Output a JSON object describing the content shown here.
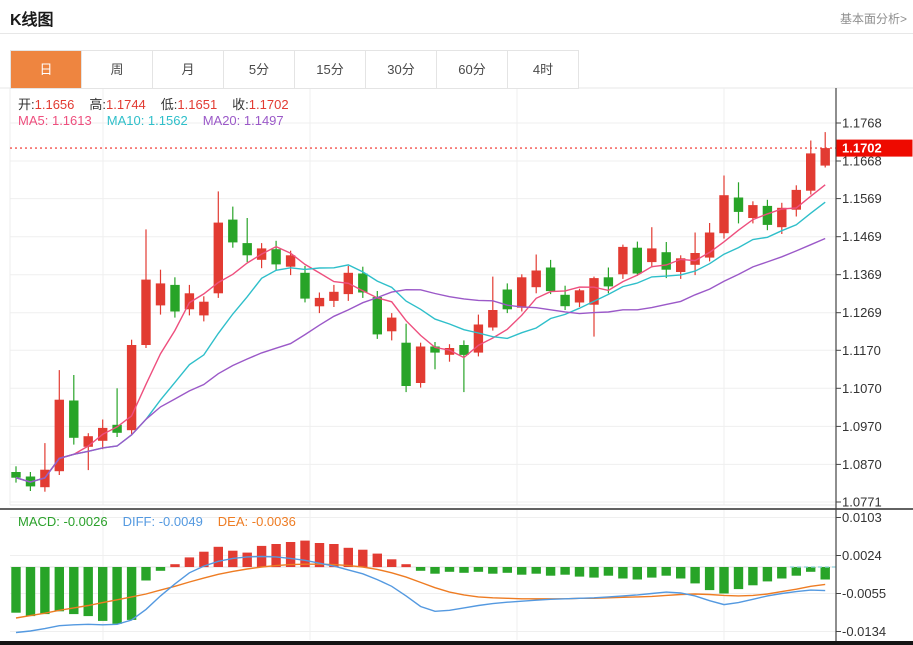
{
  "header": {
    "title": "K线图",
    "analysis_link": "基本面分析>"
  },
  "tabs": [
    {
      "name": "day",
      "label": "日",
      "active": true
    },
    {
      "name": "week",
      "label": "周",
      "active": false
    },
    {
      "name": "month",
      "label": "月",
      "active": false
    },
    {
      "name": "5min",
      "label": "5分",
      "active": false
    },
    {
      "name": "15min",
      "label": "15分",
      "active": false
    },
    {
      "name": "30min",
      "label": "30分",
      "active": false
    },
    {
      "name": "60min",
      "label": "60分",
      "active": false
    },
    {
      "name": "4hour",
      "label": "4时",
      "active": false
    }
  ],
  "ohlc_legend": {
    "label_color": "#333333",
    "value_color": "#e23b32",
    "items": [
      {
        "label": "开:",
        "value": "1.1656"
      },
      {
        "label": "高:",
        "value": "1.1744"
      },
      {
        "label": "低:",
        "value": "1.1651"
      },
      {
        "label": "收:",
        "value": "1.1702"
      }
    ]
  },
  "ma_legend": [
    {
      "label": "MA5: ",
      "value": "1.1613",
      "color": "#ee4f7e"
    },
    {
      "label": "MA10: ",
      "value": "1.1562",
      "color": "#2fbfca"
    },
    {
      "label": "MA20: ",
      "value": "1.1497",
      "color": "#9b59c8"
    }
  ],
  "macd_legend": [
    {
      "label": "MACD: ",
      "value": "-0.0026",
      "color": "#2ba12b"
    },
    {
      "label": "DIFF: ",
      "value": "-0.0049",
      "color": "#5499e0"
    },
    {
      "label": "DEA: ",
      "value": "-0.0036",
      "color": "#ee7c23"
    }
  ],
  "price_tag": {
    "value": "1.1702"
  },
  "y_axis": {
    "main_ticks": [
      "1.1768",
      "1.1668",
      "1.1569",
      "1.1469",
      "1.1369",
      "1.1269",
      "1.1170",
      "1.1070",
      "1.0970",
      "1.0870",
      "1.0771"
    ],
    "macd_ticks": [
      "0.0103",
      "0.0024",
      "-0.0055",
      "-0.0134"
    ]
  },
  "colors": {
    "up": "#e23b32",
    "down": "#28a428",
    "ma5": "#ee4f7e",
    "ma10": "#2fbfca",
    "ma20": "#9b59c8",
    "diff": "#5499e0",
    "dea": "#ee7c23",
    "tab_active_bg": "#ee8540",
    "price_line": "#f4514c",
    "price_tag_bg": "#ee0a00",
    "grid": "#efefef",
    "axis": "#444444",
    "text": "#333333",
    "zero_dash": "#8ed1dc"
  },
  "chart_data": [
    {
      "type": "candlestick",
      "interval": "日",
      "price_line": 1.1702,
      "ohlc": {
        "open": 1.1656,
        "high": 1.1744,
        "low": 1.1651,
        "close": 1.1702
      },
      "ma": {
        "MA5": 1.1613,
        "MA10": 1.1562,
        "MA20": 1.1497
      },
      "ma_periods": [
        5,
        10,
        20
      ],
      "y_range": [
        1.0771,
        1.1768
      ],
      "candles": [
        [
          1.085,
          1.0865,
          1.0822,
          1.0835
        ],
        [
          1.0838,
          1.085,
          1.08,
          1.0812
        ],
        [
          1.081,
          1.0926,
          1.0798,
          1.0856
        ],
        [
          1.0852,
          1.1118,
          1.0842,
          1.104
        ],
        [
          1.1038,
          1.1105,
          1.0922,
          1.094
        ],
        [
          1.0916,
          1.0952,
          1.0855,
          1.0944
        ],
        [
          1.0932,
          1.0988,
          1.091,
          1.0966
        ],
        [
          1.0974,
          1.107,
          1.0942,
          1.0953
        ],
        [
          1.096,
          1.1198,
          1.095,
          1.1184
        ],
        [
          1.1184,
          1.1488,
          1.1176,
          1.1356
        ],
        [
          1.1288,
          1.1382,
          1.1264,
          1.1346
        ],
        [
          1.1342,
          1.1362,
          1.1256,
          1.1272
        ],
        [
          1.1278,
          1.1342,
          1.1262,
          1.132
        ],
        [
          1.1262,
          1.1312,
          1.1246,
          1.1298
        ],
        [
          1.132,
          1.1588,
          1.1308,
          1.1506
        ],
        [
          1.1514,
          1.1548,
          1.144,
          1.1454
        ],
        [
          1.1452,
          1.1518,
          1.1402,
          1.142
        ],
        [
          1.1408,
          1.1452,
          1.1386,
          1.1438
        ],
        [
          1.1436,
          1.1458,
          1.138,
          1.1396
        ],
        [
          1.139,
          1.1432,
          1.1368,
          1.142
        ],
        [
          1.1374,
          1.1392,
          1.1296,
          1.1306
        ],
        [
          1.1286,
          1.1322,
          1.1268,
          1.1308
        ],
        [
          1.13,
          1.1342,
          1.1284,
          1.1324
        ],
        [
          1.1318,
          1.1392,
          1.13,
          1.1374
        ],
        [
          1.1372,
          1.139,
          1.1308,
          1.1322
        ],
        [
          1.131,
          1.1326,
          1.12,
          1.1212
        ],
        [
          1.122,
          1.1268,
          1.1196,
          1.1256
        ],
        [
          1.119,
          1.124,
          1.106,
          1.1076
        ],
        [
          1.1084,
          1.119,
          1.1072,
          1.118
        ],
        [
          1.118,
          1.1192,
          1.112,
          1.1164
        ],
        [
          1.1158,
          1.1186,
          1.114,
          1.1176
        ],
        [
          1.1184,
          1.1196,
          1.106,
          1.1158
        ],
        [
          1.1164,
          1.1264,
          1.1154,
          1.1238
        ],
        [
          1.123,
          1.1364,
          1.1222,
          1.1276
        ],
        [
          1.133,
          1.1346,
          1.1268,
          1.1278
        ],
        [
          1.1282,
          1.137,
          1.1272,
          1.1362
        ],
        [
          1.1336,
          1.1422,
          1.132,
          1.138
        ],
        [
          1.1388,
          1.1408,
          1.1318,
          1.1326
        ],
        [
          1.1316,
          1.134,
          1.1276,
          1.1286
        ],
        [
          1.1296,
          1.1332,
          1.1284,
          1.1328
        ],
        [
          1.129,
          1.1364,
          1.1206,
          1.136
        ],
        [
          1.1362,
          1.1388,
          1.132,
          1.1338
        ],
        [
          1.137,
          1.1448,
          1.1358,
          1.1442
        ],
        [
          1.144,
          1.1456,
          1.1366,
          1.1372
        ],
        [
          1.1402,
          1.1494,
          1.1388,
          1.1438
        ],
        [
          1.1428,
          1.1455,
          1.136,
          1.1382
        ],
        [
          1.1376,
          1.142,
          1.1358,
          1.1412
        ],
        [
          1.1395,
          1.148,
          1.1368,
          1.1426
        ],
        [
          1.1414,
          1.1505,
          1.1404,
          1.148
        ],
        [
          1.1478,
          1.163,
          1.1464,
          1.1578
        ],
        [
          1.1572,
          1.1612,
          1.1504,
          1.1534
        ],
        [
          1.1518,
          1.1562,
          1.1504,
          1.1552
        ],
        [
          1.155,
          1.1566,
          1.1486,
          1.15
        ],
        [
          1.1494,
          1.1558,
          1.1476,
          1.1545
        ],
        [
          1.154,
          1.1604,
          1.1522,
          1.1592
        ],
        [
          1.159,
          1.1722,
          1.158,
          1.1688
        ],
        [
          1.1656,
          1.1744,
          1.1651,
          1.1702
        ]
      ]
    },
    {
      "type": "macd",
      "values": {
        "MACD": -0.0026,
        "DIFF": -0.0049,
        "DEA": -0.0036
      },
      "y_range": [
        -0.0134,
        0.0103
      ],
      "histogram": [
        -0.0095,
        -0.0102,
        -0.0098,
        -0.0092,
        -0.0098,
        -0.0102,
        -0.0112,
        -0.0118,
        -0.011,
        -0.0028,
        -0.0008,
        0.0006,
        0.002,
        0.0032,
        0.0042,
        0.0034,
        0.003,
        0.0044,
        0.0048,
        0.0052,
        0.0055,
        0.005,
        0.0048,
        0.004,
        0.0036,
        0.0028,
        0.0016,
        0.0006,
        -0.0008,
        -0.0014,
        -0.001,
        -0.0012,
        -0.001,
        -0.0014,
        -0.0012,
        -0.0016,
        -0.0014,
        -0.0018,
        -0.0016,
        -0.002,
        -0.0022,
        -0.0018,
        -0.0024,
        -0.0026,
        -0.0022,
        -0.0018,
        -0.0024,
        -0.0034,
        -0.0048,
        -0.0055,
        -0.0046,
        -0.0038,
        -0.003,
        -0.0024,
        -0.0018,
        -0.001,
        -0.0026
      ],
      "diff": [
        -0.0136,
        -0.0133,
        -0.0128,
        -0.0122,
        -0.012,
        -0.0119,
        -0.012,
        -0.0119,
        -0.011,
        -0.0088,
        -0.006,
        -0.0035,
        -0.0012,
        0.0002,
        0.0012,
        0.0018,
        0.0021,
        0.0022,
        0.0021,
        0.0018,
        0.0014,
        0.0008,
        0.0002,
        -0.0006,
        -0.0014,
        -0.0026,
        -0.004,
        -0.006,
        -0.0082,
        -0.0092,
        -0.009,
        -0.0085,
        -0.008,
        -0.0076,
        -0.0073,
        -0.0071,
        -0.0069,
        -0.0067,
        -0.0066,
        -0.0065,
        -0.0064,
        -0.0062,
        -0.006,
        -0.0058,
        -0.0055,
        -0.0052,
        -0.0054,
        -0.006,
        -0.007,
        -0.0078,
        -0.0074,
        -0.0067,
        -0.006,
        -0.0055,
        -0.0051,
        -0.0048,
        -0.0049
      ],
      "dea": [
        -0.0106,
        -0.0101,
        -0.0096,
        -0.009,
        -0.0085,
        -0.008,
        -0.0074,
        -0.0068,
        -0.0062,
        -0.0056,
        -0.0048,
        -0.004,
        -0.0031,
        -0.0023,
        -0.0015,
        -0.0009,
        -0.0004,
        0.0,
        0.0003,
        0.0005,
        0.0006,
        0.0006,
        0.0005,
        0.0003,
        0.0,
        -0.0005,
        -0.0012,
        -0.0021,
        -0.0032,
        -0.0043,
        -0.0052,
        -0.0058,
        -0.0062,
        -0.0064,
        -0.0065,
        -0.0066,
        -0.0066,
        -0.0066,
        -0.0066,
        -0.0065,
        -0.0065,
        -0.0064,
        -0.0063,
        -0.0062,
        -0.0061,
        -0.0059,
        -0.0057,
        -0.0056,
        -0.0057,
        -0.0059,
        -0.006,
        -0.0059,
        -0.0056,
        -0.0051,
        -0.0046,
        -0.004,
        -0.0036
      ]
    }
  ]
}
